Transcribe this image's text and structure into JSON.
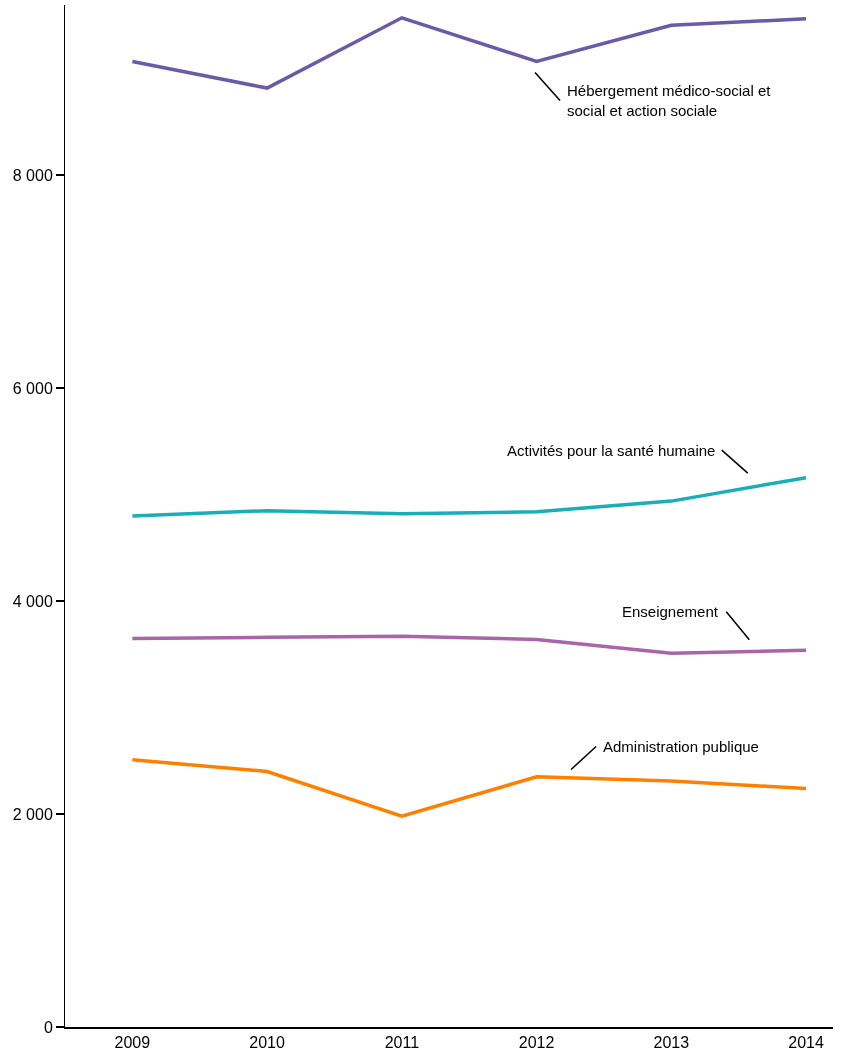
{
  "chart_data": {
    "type": "line",
    "x": [
      2009,
      2010,
      2011,
      2012,
      2013,
      2014
    ],
    "series": [
      {
        "color": "#6a5aa8",
        "values": [
          9070,
          8820,
          9480,
          9070,
          9410,
          9470
        ]
      },
      {
        "color": "#1aafb8",
        "values": [
          4800,
          4850,
          4820,
          4840,
          4940,
          5160
        ]
      },
      {
        "color": "#a965a8",
        "values": [
          3650,
          3660,
          3670,
          3640,
          3510,
          3540
        ]
      },
      {
        "color": "#ff8000",
        "values": [
          2510,
          2400,
          1980,
          2350,
          2310,
          2240
        ]
      }
    ],
    "xlim": [
      2008.5,
      2014.2
    ],
    "xticks": [
      2009,
      2010,
      2011,
      2012,
      2013,
      2014
    ],
    "ylim": [
      0,
      9600
    ],
    "yticks": [
      {
        "value": 0,
        "label": "0"
      },
      {
        "value": 2000,
        "label": "2 000"
      },
      {
        "value": 4000,
        "label": "4 000"
      },
      {
        "value": 6000,
        "label": "6 000"
      },
      {
        "value": 8000,
        "label": "8 000"
      }
    ],
    "annotations": [
      "Hébergement médico-social et\nsocial et action sociale",
      "Activités pour la santé humaine",
      "Enseignement",
      "Administration publique"
    ],
    "grid": false,
    "marker": "none",
    "line_style": "solid"
  }
}
